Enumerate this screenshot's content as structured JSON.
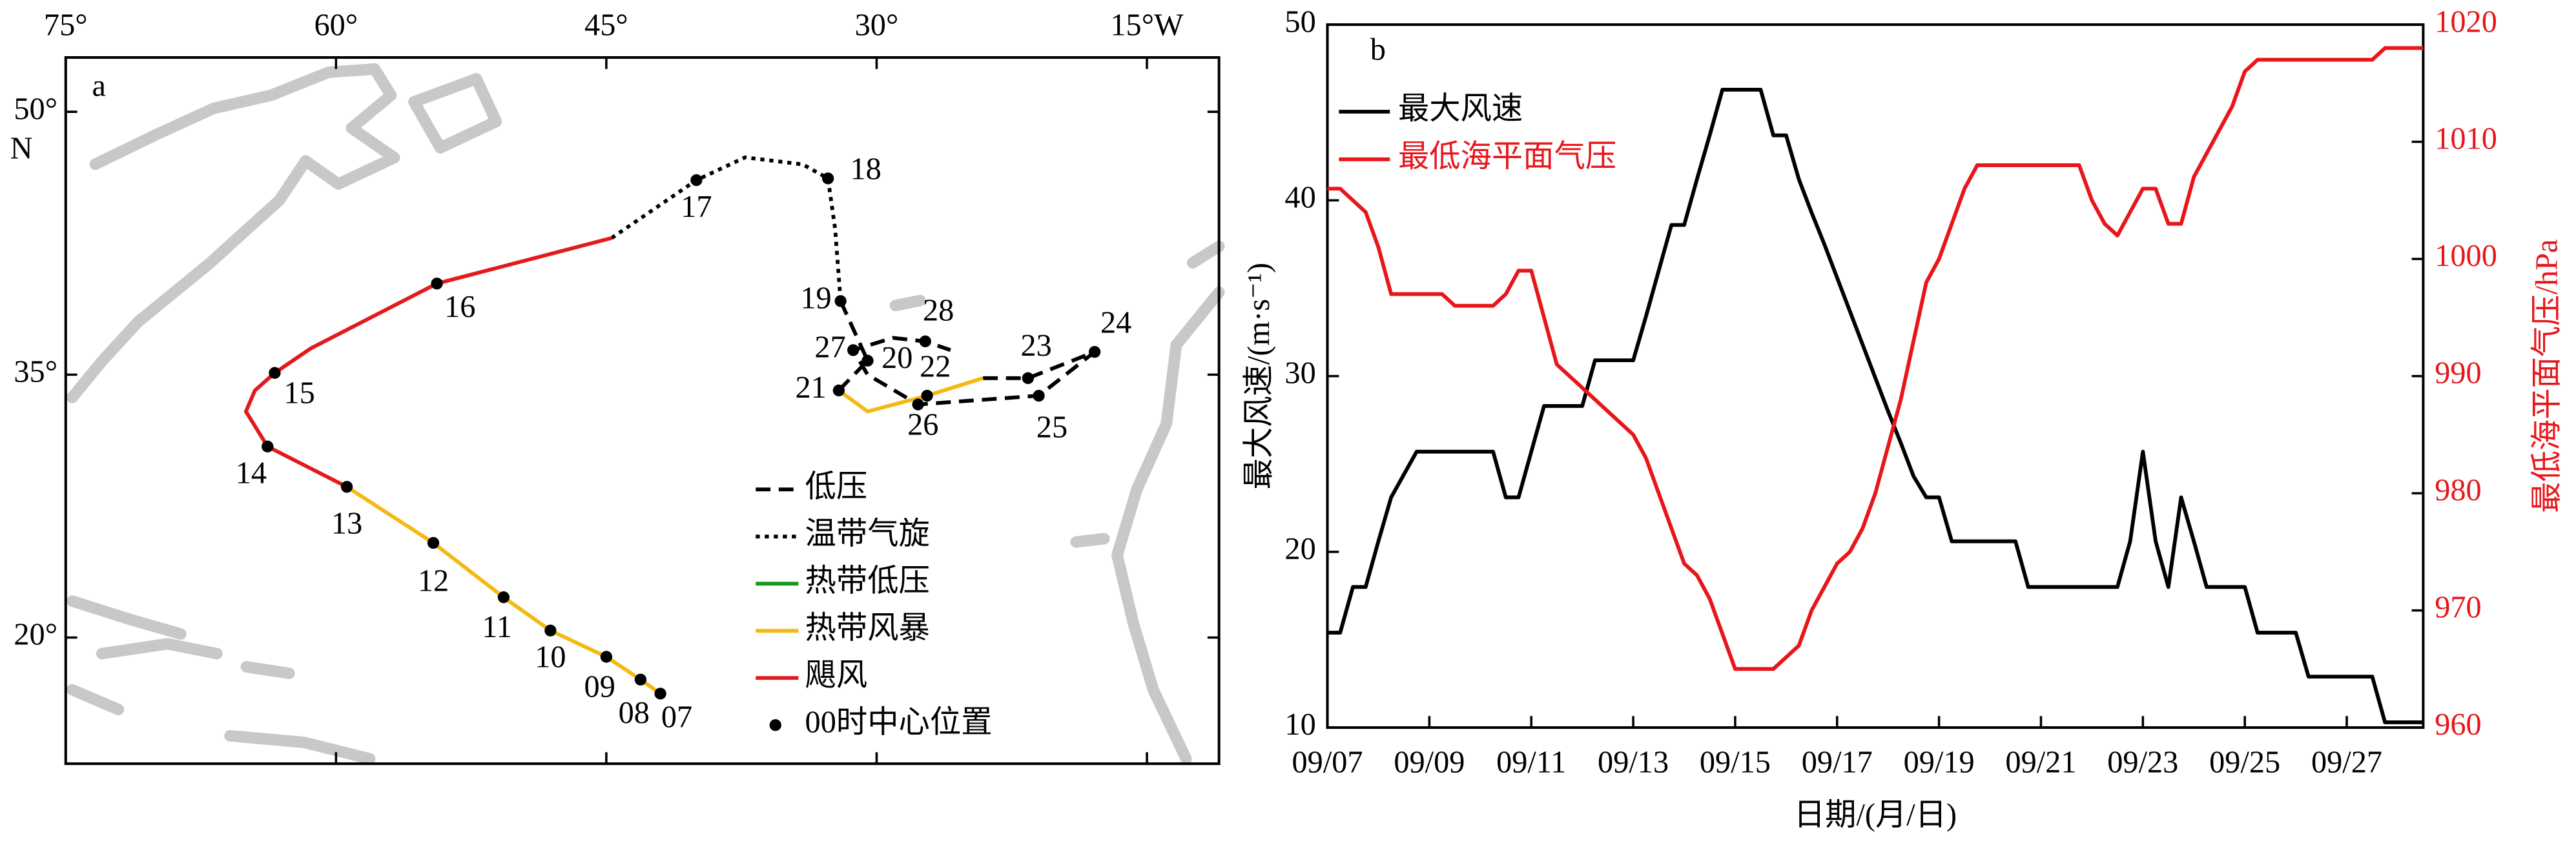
{
  "chart_data": [
    {
      "type": "map",
      "panel": "a",
      "xlim": [
        -75,
        -11
      ],
      "ylim": [
        12.8,
        53.1
      ],
      "xticks": [
        {
          "value": -75,
          "label": "75°"
        },
        {
          "value": -60,
          "label": "60°"
        },
        {
          "value": -45,
          "label": "45°"
        },
        {
          "value": -30,
          "label": "30°"
        },
        {
          "value": -15,
          "label": "15°W"
        }
      ],
      "yticks": [
        {
          "value": 20,
          "label": "20°"
        },
        {
          "value": 35,
          "label": "35°"
        },
        {
          "value": 50,
          "label": "50°"
        }
      ],
      "y_unit": "N",
      "series": [
        {
          "name": "低压",
          "color": "#000000",
          "style": "dashed",
          "x": [
            -32.0,
            -30.5,
            -32.1,
            null,
            -24.1,
            -21.6,
            -17.9,
            -21.0,
            -27.7,
            -30.5,
            -31.3,
            -29.1,
            -27.3,
            -25.9
          ],
          "y": [
            39.2,
            35.8,
            34.1,
            null,
            34.8,
            34.8,
            36.3,
            33.8,
            33.3,
            35.0,
            36.4,
            37.1,
            36.9,
            36.4
          ]
        },
        {
          "name": "温带气旋",
          "color": "#000000",
          "style": "dotted",
          "x": [
            -44.7,
            -40.0,
            -37.3,
            -34.1,
            -32.7,
            -32.3,
            -32.0
          ],
          "y": [
            42.8,
            46.1,
            47.4,
            47.0,
            46.2,
            43.3,
            39.2
          ]
        },
        {
          "name": "热带低压",
          "color": "#1a9a1a",
          "style": "solid",
          "x": [],
          "y": []
        },
        {
          "name": "热带风暴",
          "color": "#f5b914",
          "style": "solid",
          "x": [
            -42.0,
            -43.1,
            -45.0,
            -48.1,
            -50.7,
            -54.6,
            -59.4,
            null,
            -32.1,
            -30.5,
            -27.2,
            -24.1
          ],
          "y": [
            16.8,
            17.6,
            18.9,
            20.4,
            22.3,
            25.4,
            28.6,
            null,
            34.1,
            32.9,
            33.8,
            34.8
          ]
        },
        {
          "name": "飓风",
          "color": "#e31a1c",
          "style": "solid",
          "x": [
            -59.4,
            -63.8,
            -65.0,
            -64.5,
            -63.4,
            -61.4,
            -54.4,
            -44.7
          ],
          "y": [
            28.6,
            30.9,
            32.9,
            34.1,
            35.1,
            36.5,
            40.2,
            42.8
          ]
        },
        {
          "name": "00时中心位置",
          "color": "#000000",
          "style": "marker",
          "x": [
            -42.0,
            -43.1,
            -45.0,
            -48.1,
            -50.7,
            -54.6,
            -59.4,
            -63.8,
            -63.4,
            -54.4,
            -40.0,
            -32.7,
            -32.0,
            -30.5,
            -32.1,
            -27.2,
            -21.6,
            -17.9,
            -21.0,
            -27.7,
            -31.3,
            -27.3
          ],
          "y": [
            16.8,
            17.6,
            18.9,
            20.4,
            22.3,
            25.4,
            28.6,
            30.9,
            35.1,
            40.2,
            46.1,
            46.2,
            39.2,
            35.8,
            34.1,
            33.8,
            34.8,
            36.3,
            33.8,
            33.3,
            36.4,
            36.9
          ],
          "labels": [
            "07",
            "08",
            "09",
            "10",
            "11",
            "12",
            "13",
            "14",
            "15",
            "16",
            "17",
            "18",
            "19",
            "20",
            "21",
            "22",
            "23",
            "24",
            "25",
            "26",
            "27",
            "28"
          ]
        }
      ]
    },
    {
      "type": "line",
      "panel": "b",
      "xlabel": "日期/(月/日)",
      "ylabel": "最大风速/(m·s⁻¹)",
      "y2label": "最低海平面气压/hPa",
      "xlim": [
        7,
        28.5
      ],
      "xticks": [
        {
          "value": 7,
          "label": "09/07"
        },
        {
          "value": 9,
          "label": "09/09"
        },
        {
          "value": 11,
          "label": "09/11"
        },
        {
          "value": 13,
          "label": "09/13"
        },
        {
          "value": 15,
          "label": "09/15"
        },
        {
          "value": 17,
          "label": "09/17"
        },
        {
          "value": 19,
          "label": "09/19"
        },
        {
          "value": 21,
          "label": "09/21"
        },
        {
          "value": 23,
          "label": "09/23"
        },
        {
          "value": 25,
          "label": "09/25"
        },
        {
          "value": 27,
          "label": "09/27"
        }
      ],
      "ylim": [
        10,
        50
      ],
      "yticks": [
        10,
        20,
        30,
        40,
        50
      ],
      "y2lim": [
        960,
        1020
      ],
      "y2ticks": [
        960,
        970,
        980,
        990,
        1000,
        1010,
        1020
      ],
      "x": [
        7,
        7.25,
        7.5,
        7.75,
        8,
        8.25,
        8.5,
        8.75,
        9,
        9.25,
        9.5,
        9.75,
        10,
        10.25,
        10.5,
        10.75,
        11,
        11.25,
        11.5,
        11.75,
        12,
        12.25,
        12.5,
        12.75,
        13,
        13.25,
        13.5,
        13.75,
        14,
        14.25,
        14.5,
        14.75,
        15,
        15.25,
        15.5,
        15.75,
        16,
        16.25,
        16.5,
        16.75,
        17,
        17.25,
        17.5,
        17.75,
        18,
        18.25,
        18.5,
        18.75,
        19,
        19.25,
        19.5,
        19.75,
        20,
        20.25,
        20.5,
        20.75,
        21,
        21.25,
        21.5,
        21.75,
        22,
        22.25,
        22.5,
        22.75,
        23,
        23.25,
        23.5,
        23.75,
        24,
        24.25,
        24.5,
        24.75,
        25,
        25.25,
        25.5,
        25.75,
        26,
        26.25,
        26.5,
        26.75,
        27,
        27.25,
        27.5,
        27.75,
        28,
        28.25,
        28.5
      ],
      "series": [
        {
          "name": "最大风速",
          "color": "#000000",
          "values": [
            15.4,
            15.4,
            18.0,
            18.0,
            20.6,
            23.1,
            24.4,
            25.7,
            25.7,
            25.7,
            25.7,
            25.7,
            25.7,
            25.7,
            23.1,
            23.1,
            25.7,
            28.3,
            28.3,
            28.3,
            28.3,
            30.9,
            30.9,
            30.9,
            30.9,
            33.4,
            36.0,
            38.6,
            38.6,
            41.2,
            43.7,
            46.3,
            46.3,
            46.3,
            46.3,
            43.7,
            43.7,
            41.2,
            39.3,
            37.5,
            35.6,
            33.7,
            31.8,
            29.9,
            28.0,
            26.2,
            24.3,
            23.1,
            23.1,
            20.6,
            20.6,
            20.6,
            20.6,
            20.6,
            20.6,
            18.0,
            18.0,
            18.0,
            18.0,
            18.0,
            18.0,
            18.0,
            18.0,
            20.6,
            25.7,
            20.6,
            18.0,
            23.1,
            20.6,
            18.0,
            18.0,
            18.0,
            18.0,
            15.4,
            15.4,
            15.4,
            15.4,
            12.9,
            12.9,
            12.9,
            12.9,
            12.9,
            12.9,
            10.3,
            10.3,
            10.3,
            10.3
          ]
        },
        {
          "name": "最低海平面气压",
          "color": "#e8161b",
          "axis": "y2",
          "values": [
            1006,
            1006,
            1005,
            1004,
            1001,
            997,
            997,
            997,
            997,
            997,
            996,
            996,
            996,
            996,
            997,
            999,
            999,
            995,
            991,
            990,
            989,
            988,
            987,
            986,
            985,
            983,
            980,
            977,
            974,
            973,
            971,
            968,
            965,
            965,
            965,
            965,
            966,
            967,
            970,
            972,
            974,
            975,
            977,
            980,
            984,
            988,
            993,
            998,
            1000,
            1003,
            1006,
            1008,
            1008,
            1008,
            1008,
            1008,
            1008,
            1008,
            1008,
            1008,
            1005,
            1003,
            1002,
            1004,
            1006,
            1006,
            1003,
            1003,
            1007,
            1009,
            1011,
            1013,
            1016,
            1017,
            1017,
            1017,
            1017,
            1017,
            1017,
            1017,
            1017,
            1017,
            1017,
            1018,
            1018,
            1018,
            1018
          ]
        }
      ]
    }
  ]
}
